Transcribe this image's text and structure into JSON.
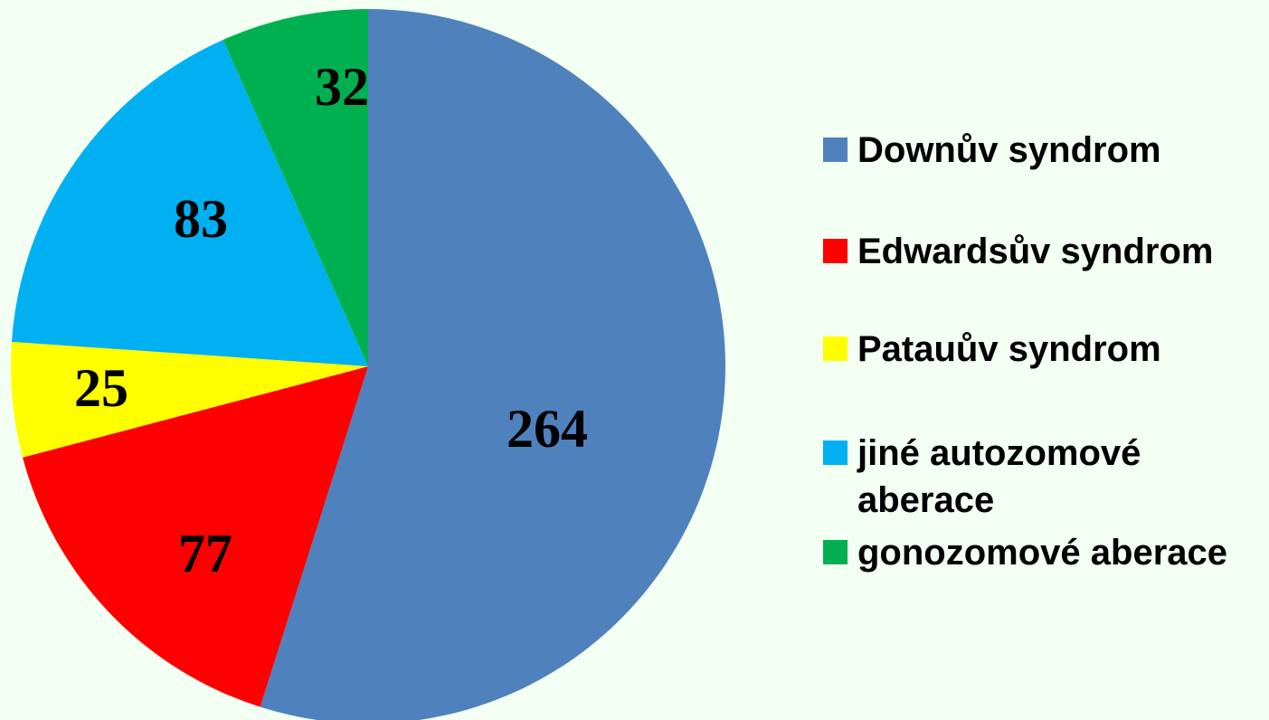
{
  "chart_data": {
    "type": "pie",
    "categories": [
      "Downův syndrom",
      "Edwardsův syndrom",
      "Patauův syndrom",
      "jiné autozomové aberace",
      "gonozomové aberace"
    ],
    "values": [
      264,
      77,
      25,
      83,
      32
    ],
    "colors": [
      "#4f81bd",
      "#ff0000",
      "#ffff00",
      "#00b0f0",
      "#00b050"
    ],
    "legend": "right"
  }
}
